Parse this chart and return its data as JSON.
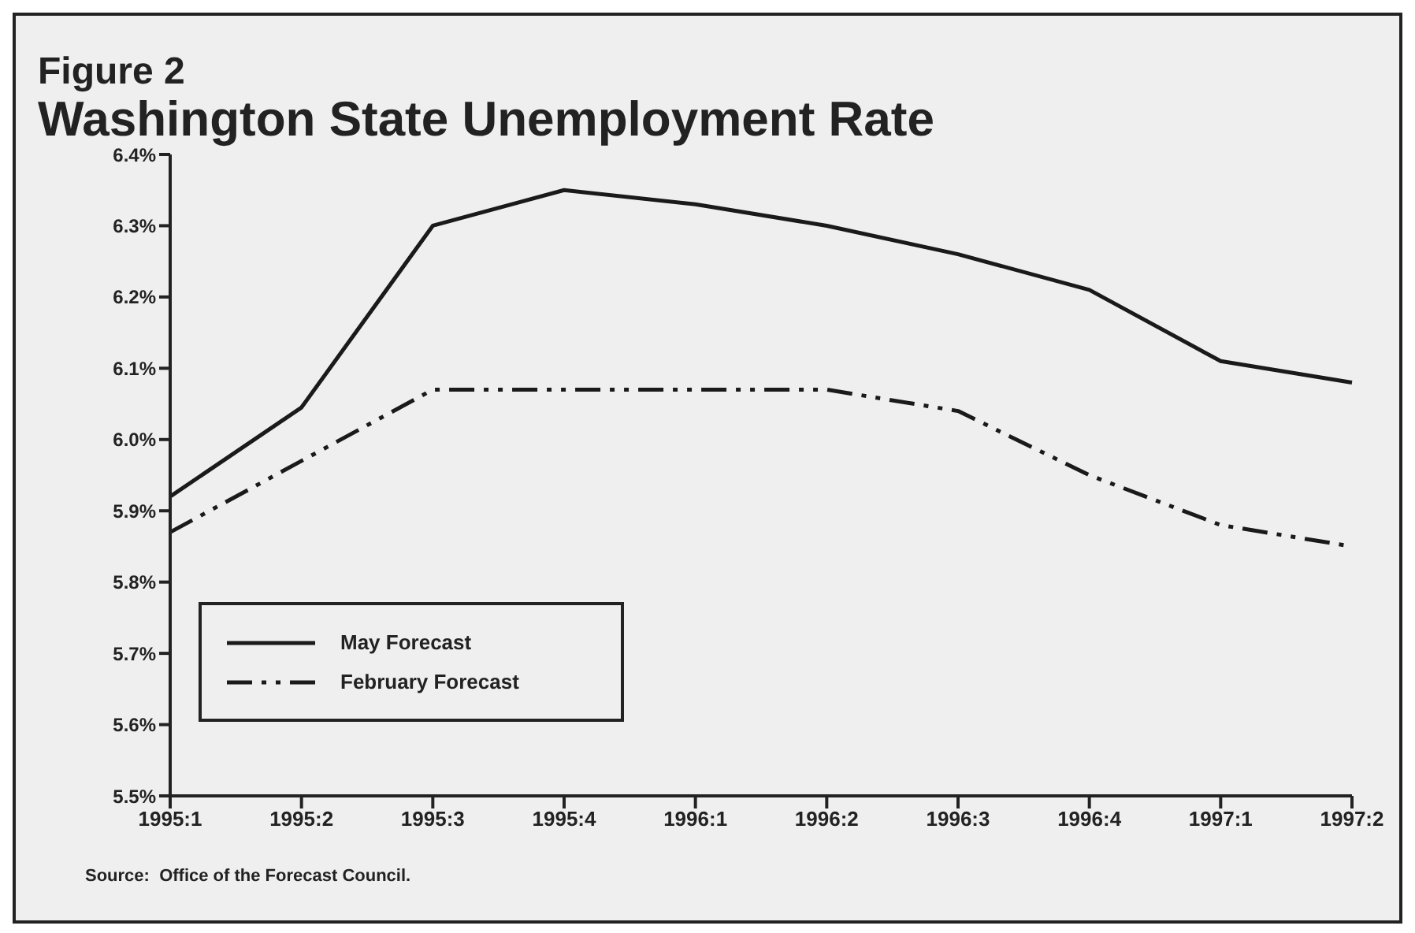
{
  "chart_data": {
    "type": "line",
    "title": "Figure 2",
    "subtitle": "Washington State Unemployment Rate",
    "categories": [
      "1995:1",
      "1995:2",
      "1995:3",
      "1995:4",
      "1996:1",
      "1996:2",
      "1996:3",
      "1996:4",
      "1997:1",
      "1997:2"
    ],
    "series": [
      {
        "name": "May Forecast",
        "color": "#1a1a1a",
        "line_style": "solid",
        "values": [
          5.92,
          6.045,
          6.3,
          6.35,
          6.33,
          6.3,
          6.26,
          6.21,
          6.11,
          6.08
        ]
      },
      {
        "name": "February Forecast",
        "color": "#1a1a1a",
        "line_style": "dashed",
        "values": [
          5.87,
          5.97,
          6.07,
          6.07,
          6.07,
          6.07,
          6.04,
          5.95,
          5.88,
          5.85
        ]
      }
    ],
    "ylim": [
      5.5,
      6.4
    ],
    "yticks": [
      {
        "value": 5.5,
        "label": "5.5%"
      },
      {
        "value": 5.6,
        "label": "5.6%"
      },
      {
        "value": 5.7,
        "label": "5.7%"
      },
      {
        "value": 5.8,
        "label": "5.8%"
      },
      {
        "value": 5.9,
        "label": "5.9%"
      },
      {
        "value": 6.0,
        "label": "6.0%"
      },
      {
        "value": 6.1,
        "label": "6.1%"
      },
      {
        "value": 6.2,
        "label": "6.2%"
      },
      {
        "value": 6.3,
        "label": "6.3%"
      },
      {
        "value": 6.4,
        "label": "6.4%"
      }
    ],
    "grid": false,
    "legend": "bottom left",
    "marker": "none",
    "annotations": [
      "Source:  Office of the Forecast Council."
    ]
  }
}
